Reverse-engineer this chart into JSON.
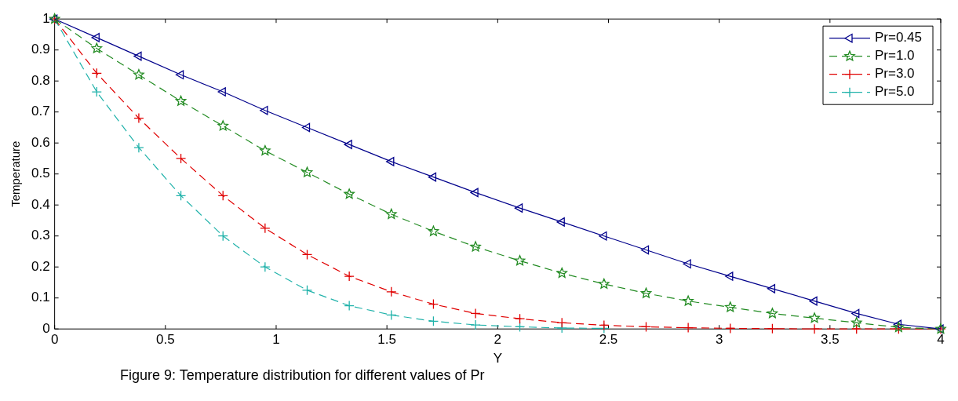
{
  "chart_data": {
    "type": "line",
    "xlabel": "Y",
    "ylabel": "Temperature",
    "annotations": [
      "Figure 9: Temperature distribution for different values of Pr"
    ],
    "xlim": [
      0,
      4
    ],
    "xticks": [
      0,
      0.5,
      1,
      1.5,
      2,
      2.5,
      3,
      3.5,
      4
    ],
    "ylim": [
      0,
      1
    ],
    "yticks": [
      0,
      0.1,
      0.2,
      0.3,
      0.4,
      0.5,
      0.6,
      0.7,
      0.8,
      0.9,
      1
    ],
    "grid": false,
    "legend": "top right",
    "x": [
      0,
      0.19,
      0.38,
      0.57,
      0.76,
      0.95,
      1.14,
      1.33,
      1.52,
      1.71,
      1.9,
      2.1,
      2.29,
      2.48,
      2.67,
      2.86,
      3.05,
      3.24,
      3.43,
      3.62,
      3.81,
      4
    ],
    "series": [
      {
        "name": "Pr=0.45",
        "color": "#00008b",
        "marker": "triangle",
        "line_style": "solid",
        "values": [
          1,
          0.94,
          0.88,
          0.82,
          0.765,
          0.705,
          0.65,
          0.595,
          0.54,
          0.49,
          0.44,
          0.39,
          0.345,
          0.3,
          0.255,
          0.21,
          0.17,
          0.13,
          0.09,
          0.05,
          0.015,
          0
        ]
      },
      {
        "name": "Pr=1.0",
        "color": "#228b22",
        "marker": "star",
        "line_style": "dashed",
        "values": [
          1,
          0.905,
          0.82,
          0.735,
          0.655,
          0.575,
          0.505,
          0.435,
          0.37,
          0.315,
          0.265,
          0.22,
          0.18,
          0.145,
          0.115,
          0.09,
          0.07,
          0.05,
          0.035,
          0.02,
          0.005,
          0
        ]
      },
      {
        "name": "Pr=3.0",
        "color": "#e00000",
        "marker": "cross",
        "line_style": "dashed",
        "values": [
          1,
          0.825,
          0.68,
          0.55,
          0.43,
          0.325,
          0.24,
          0.17,
          0.12,
          0.08,
          0.05,
          0.033,
          0.02,
          0.012,
          0.007,
          0.004,
          0.002,
          0.001,
          0,
          0,
          0,
          0
        ]
      },
      {
        "name": "Pr=5.0",
        "color": "#20b2aa",
        "marker": "cross",
        "line_style": "dashed",
        "values": [
          1,
          0.765,
          0.585,
          0.43,
          0.3,
          0.2,
          0.125,
          0.075,
          0.045,
          0.025,
          0.013,
          0.007,
          0.003,
          0.002,
          null,
          null,
          null,
          null,
          null,
          null,
          null,
          null
        ]
      }
    ]
  }
}
